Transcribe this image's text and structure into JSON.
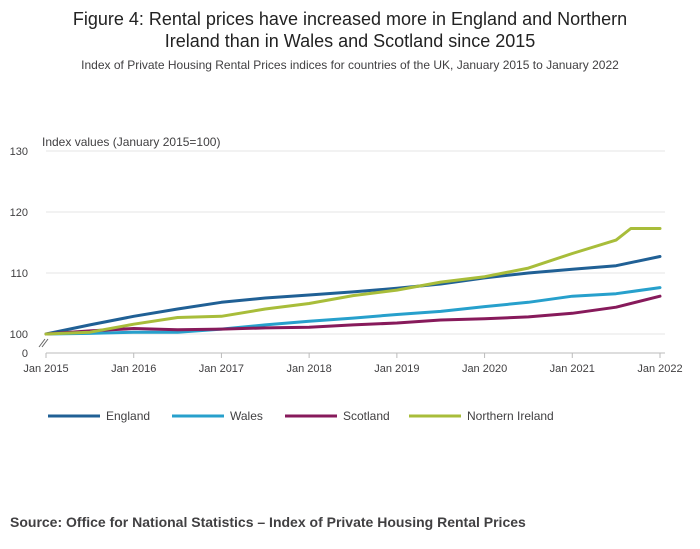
{
  "title_line1": "Figure 4: Rental prices have increased more in England and Northern",
  "title_line2": "Ireland than in Wales and Scotland since 2015",
  "subtitle": "Index of Private Housing Rental Prices indices for countries of the UK, January 2015 to January 2022",
  "source": "Source: Office for National Statistics – Index of Private Housing Rental Prices",
  "colors": {
    "England": "#206095",
    "Wales": "#27a0cc",
    "Scotland": "#871a5b",
    "Northern Ireland": "#a8bd3a",
    "grid": "#e6e6e6",
    "axis": "#bbbbbb"
  },
  "chart_data": {
    "type": "line",
    "ylabel": "Index values (January 2015=100)",
    "ylim": [
      100,
      130
    ],
    "yticks": [
      "130",
      "120",
      "110",
      "100"
    ],
    "y_zero_label": "0",
    "xticks": [
      "Jan 2015",
      "Jan 2016",
      "Jan 2017",
      "Jan 2018",
      "Jan 2019",
      "Jan 2020",
      "Jan 2021",
      "Jan 2022"
    ],
    "xlim": [
      "2015-01",
      "2022-01"
    ],
    "grid": true,
    "legend_position": "bottom",
    "series": [
      {
        "name": "England",
        "x": [
          "2015-01",
          "2015-07",
          "2016-01",
          "2016-07",
          "2017-01",
          "2017-07",
          "2018-01",
          "2018-07",
          "2019-01",
          "2019-07",
          "2020-01",
          "2020-07",
          "2021-01",
          "2021-07",
          "2022-01"
        ],
        "values": [
          100.0,
          101.5,
          102.9,
          104.1,
          105.2,
          105.9,
          106.4,
          106.9,
          107.5,
          108.2,
          109.2,
          110.0,
          110.6,
          111.2,
          112.7
        ]
      },
      {
        "name": "Wales",
        "x": [
          "2015-01",
          "2015-07",
          "2016-01",
          "2016-07",
          "2017-01",
          "2017-07",
          "2018-01",
          "2018-07",
          "2019-01",
          "2019-07",
          "2020-01",
          "2020-07",
          "2021-01",
          "2021-07",
          "2022-01"
        ],
        "values": [
          100.0,
          100.1,
          100.3,
          100.3,
          100.8,
          101.5,
          102.1,
          102.6,
          103.2,
          103.7,
          104.5,
          105.2,
          106.2,
          106.6,
          107.6
        ]
      },
      {
        "name": "Scotland",
        "x": [
          "2015-01",
          "2015-07",
          "2016-01",
          "2016-07",
          "2017-01",
          "2017-07",
          "2018-01",
          "2018-07",
          "2019-01",
          "2019-07",
          "2020-01",
          "2020-07",
          "2021-01",
          "2021-07",
          "2022-01"
        ],
        "values": [
          100.0,
          100.5,
          100.9,
          100.7,
          100.8,
          101.0,
          101.1,
          101.5,
          101.8,
          102.3,
          102.5,
          102.8,
          103.4,
          104.4,
          106.2
        ]
      },
      {
        "name": "Northern Ireland",
        "x": [
          "2015-01",
          "2015-07",
          "2016-01",
          "2016-07",
          "2017-01",
          "2017-07",
          "2018-01",
          "2018-07",
          "2019-01",
          "2019-07",
          "2020-01",
          "2020-07",
          "2021-01",
          "2021-07",
          "2021-09",
          "2021-11",
          "2022-01"
        ],
        "values": [
          100.0,
          100.3,
          101.6,
          102.7,
          102.9,
          104.1,
          105.0,
          106.3,
          107.2,
          108.5,
          109.4,
          110.8,
          113.2,
          115.4,
          117.3,
          117.3,
          117.3
        ]
      }
    ]
  }
}
